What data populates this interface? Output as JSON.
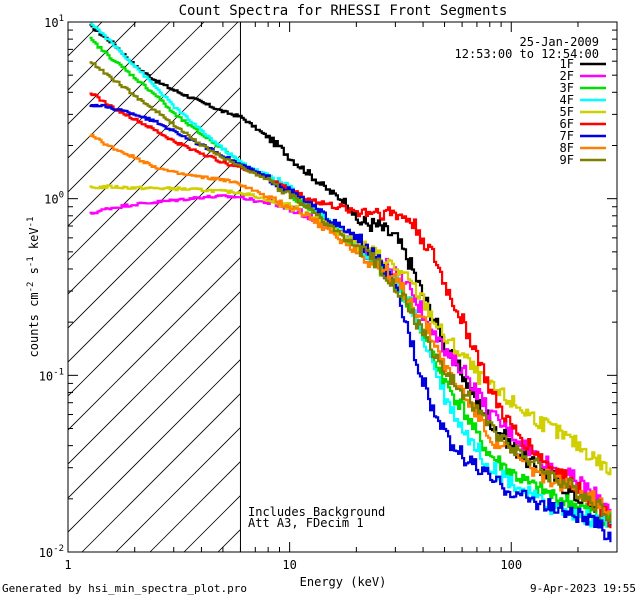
{
  "chart_data": {
    "type": "line",
    "title": "Count Spectra for RHESSI Front Segments",
    "xlabel": "Energy (keV)",
    "ylabel": "counts cm-2 s-1 keV-1",
    "x_scale": "log",
    "y_scale": "log",
    "xlim": [
      1,
      300
    ],
    "ylim": [
      0.01,
      10
    ],
    "x_ticks": [
      {
        "value": 1,
        "label": "1"
      },
      {
        "value": 10,
        "label": "10"
      },
      {
        "value": 100,
        "label": "100"
      }
    ],
    "y_ticks": [
      {
        "value": 0.01,
        "base": "10",
        "exp": "-2"
      },
      {
        "value": 0.1,
        "base": "10",
        "exp": "-1"
      },
      {
        "value": 1,
        "base": "10",
        "exp": "0"
      },
      {
        "value": 10,
        "base": "10",
        "exp": "1"
      }
    ],
    "date": "25-Jan-2009",
    "time_range": "12:53:00 to 12:54:00",
    "hatch_upper_energy": 6,
    "annotations": [
      "Includes Background",
      "Att A3, FDecim 1"
    ],
    "series": [
      {
        "name": "1F",
        "color": "#000000",
        "x": [
          1.25,
          1.6,
          2,
          2.5,
          3,
          4,
          5,
          6,
          7,
          8,
          9,
          10,
          12,
          15,
          18,
          20,
          25,
          30,
          35,
          40,
          45,
          50,
          60,
          70,
          80,
          100,
          120,
          150,
          200,
          250,
          280
        ],
        "y": [
          9.5,
          7.5,
          5.6,
          4.6,
          4.1,
          3.5,
          3.1,
          2.9,
          2.5,
          2.2,
          1.95,
          1.7,
          1.4,
          1.1,
          0.95,
          0.75,
          0.7,
          0.6,
          0.42,
          0.28,
          0.2,
          0.15,
          0.1,
          0.07,
          0.055,
          0.04,
          0.032,
          0.027,
          0.02,
          0.018,
          0.015
        ]
      },
      {
        "name": "2F",
        "color": "#ff00ff",
        "x": [
          1.25,
          1.5,
          2,
          3,
          4,
          5,
          6,
          7,
          8,
          10,
          12,
          15,
          20,
          25,
          30,
          35,
          40,
          45,
          50,
          60,
          70,
          80,
          100,
          120,
          150,
          200,
          250,
          280
        ],
        "y": [
          0.82,
          0.88,
          0.93,
          0.98,
          1.02,
          1.03,
          1.02,
          0.97,
          0.95,
          0.88,
          0.8,
          0.7,
          0.55,
          0.45,
          0.37,
          0.3,
          0.22,
          0.18,
          0.13,
          0.11,
          0.08,
          0.06,
          0.047,
          0.038,
          0.031,
          0.025,
          0.02,
          0.018
        ]
      },
      {
        "name": "3F",
        "color": "#00e000",
        "x": [
          1.25,
          1.5,
          2,
          2.5,
          3,
          4,
          5,
          6,
          7,
          8,
          10,
          12,
          15,
          20,
          25,
          30,
          35,
          40,
          45,
          50,
          60,
          70,
          80,
          100,
          120,
          150,
          200,
          250,
          280
        ],
        "y": [
          8,
          6.5,
          4.8,
          3.8,
          3,
          2.3,
          1.9,
          1.6,
          1.4,
          1.3,
          1.05,
          0.9,
          0.72,
          0.52,
          0.42,
          0.33,
          0.24,
          0.17,
          0.12,
          0.09,
          0.065,
          0.045,
          0.035,
          0.028,
          0.024,
          0.021,
          0.018,
          0.016,
          0.015
        ]
      },
      {
        "name": "4F",
        "color": "#00ffff",
        "x": [
          1.25,
          1.5,
          2,
          2.5,
          3,
          4,
          5,
          6,
          7,
          8,
          10,
          12,
          15,
          20,
          25,
          30,
          35,
          40,
          45,
          50,
          60,
          70,
          80,
          100,
          120,
          150,
          200,
          250,
          280
        ],
        "y": [
          10,
          8,
          5.6,
          4.2,
          3.3,
          2.4,
          1.9,
          1.6,
          1.45,
          1.35,
          1.15,
          0.95,
          0.76,
          0.55,
          0.44,
          0.34,
          0.25,
          0.16,
          0.11,
          0.075,
          0.05,
          0.038,
          0.03,
          0.025,
          0.021,
          0.018,
          0.016,
          0.015,
          0.014
        ]
      },
      {
        "name": "5F",
        "color": "#d0d000",
        "x": [
          1.25,
          1.5,
          2,
          3,
          4,
          5,
          6,
          7,
          8,
          10,
          12,
          15,
          20,
          25,
          30,
          35,
          40,
          45,
          50,
          60,
          70,
          80,
          100,
          120,
          150,
          200,
          250,
          280
        ],
        "y": [
          1.15,
          1.17,
          1.15,
          1.14,
          1.12,
          1.1,
          1.08,
          1.03,
          0.98,
          0.9,
          0.82,
          0.7,
          0.56,
          0.47,
          0.4,
          0.33,
          0.26,
          0.2,
          0.16,
          0.13,
          0.1,
          0.085,
          0.07,
          0.06,
          0.05,
          0.04,
          0.032,
          0.028
        ]
      },
      {
        "name": "6F",
        "color": "#ff0000",
        "x": [
          1.25,
          1.5,
          2,
          2.5,
          3,
          4,
          5,
          6,
          7,
          8,
          10,
          12,
          15,
          20,
          25,
          30,
          35,
          40,
          45,
          50,
          60,
          70,
          80,
          100,
          120,
          150,
          200,
          250,
          280
        ],
        "y": [
          4,
          3.4,
          2.8,
          2.4,
          2.1,
          1.8,
          1.6,
          1.5,
          1.4,
          1.3,
          1.1,
          1.0,
          0.92,
          0.85,
          0.85,
          0.82,
          0.75,
          0.58,
          0.45,
          0.32,
          0.2,
          0.13,
          0.08,
          0.05,
          0.04,
          0.03,
          0.023,
          0.018,
          0.015
        ]
      },
      {
        "name": "7F",
        "color": "#0000e0",
        "x": [
          1.25,
          1.5,
          2,
          2.5,
          3,
          4,
          5,
          6,
          7,
          8,
          10,
          12,
          15,
          20,
          25,
          30,
          35,
          40,
          45,
          50,
          60,
          70,
          80,
          100,
          120,
          150,
          200,
          250,
          280
        ],
        "y": [
          3.4,
          3.3,
          3.0,
          2.7,
          2.4,
          2.0,
          1.75,
          1.55,
          1.42,
          1.3,
          1.1,
          0.95,
          0.76,
          0.6,
          0.44,
          0.3,
          0.16,
          0.09,
          0.06,
          0.045,
          0.035,
          0.03,
          0.026,
          0.022,
          0.02,
          0.018,
          0.016,
          0.014,
          0.012
        ]
      },
      {
        "name": "8F",
        "color": "#ff8000",
        "x": [
          1.25,
          1.5,
          2,
          2.5,
          3,
          4,
          5,
          6,
          7,
          8,
          10,
          12,
          15,
          20,
          25,
          30,
          35,
          40,
          45,
          50,
          60,
          70,
          80,
          100,
          120,
          150,
          200,
          250,
          280
        ],
        "y": [
          2.3,
          2.0,
          1.7,
          1.5,
          1.4,
          1.32,
          1.28,
          1.2,
          1.1,
          1.0,
          0.9,
          0.8,
          0.65,
          0.5,
          0.41,
          0.34,
          0.26,
          0.2,
          0.15,
          0.11,
          0.08,
          0.06,
          0.045,
          0.036,
          0.03,
          0.026,
          0.022,
          0.019,
          0.017
        ]
      },
      {
        "name": "9F",
        "color": "#808000",
        "x": [
          1.25,
          1.5,
          2,
          2.5,
          3,
          4,
          5,
          6,
          7,
          8,
          10,
          12,
          15,
          20,
          25,
          30,
          35,
          40,
          45,
          50,
          60,
          70,
          80,
          100,
          120,
          150,
          200,
          250,
          280
        ],
        "y": [
          6,
          5.0,
          3.8,
          3.1,
          2.6,
          2.0,
          1.7,
          1.52,
          1.38,
          1.25,
          1.05,
          0.9,
          0.7,
          0.53,
          0.42,
          0.32,
          0.23,
          0.17,
          0.13,
          0.1,
          0.08,
          0.065,
          0.05,
          0.04,
          0.033,
          0.027,
          0.022,
          0.018,
          0.016
        ]
      }
    ]
  },
  "footer": {
    "generated_by": "Generated by hsi_min_spectra_plot.pro",
    "timestamp": "9-Apr-2023 19:55"
  }
}
